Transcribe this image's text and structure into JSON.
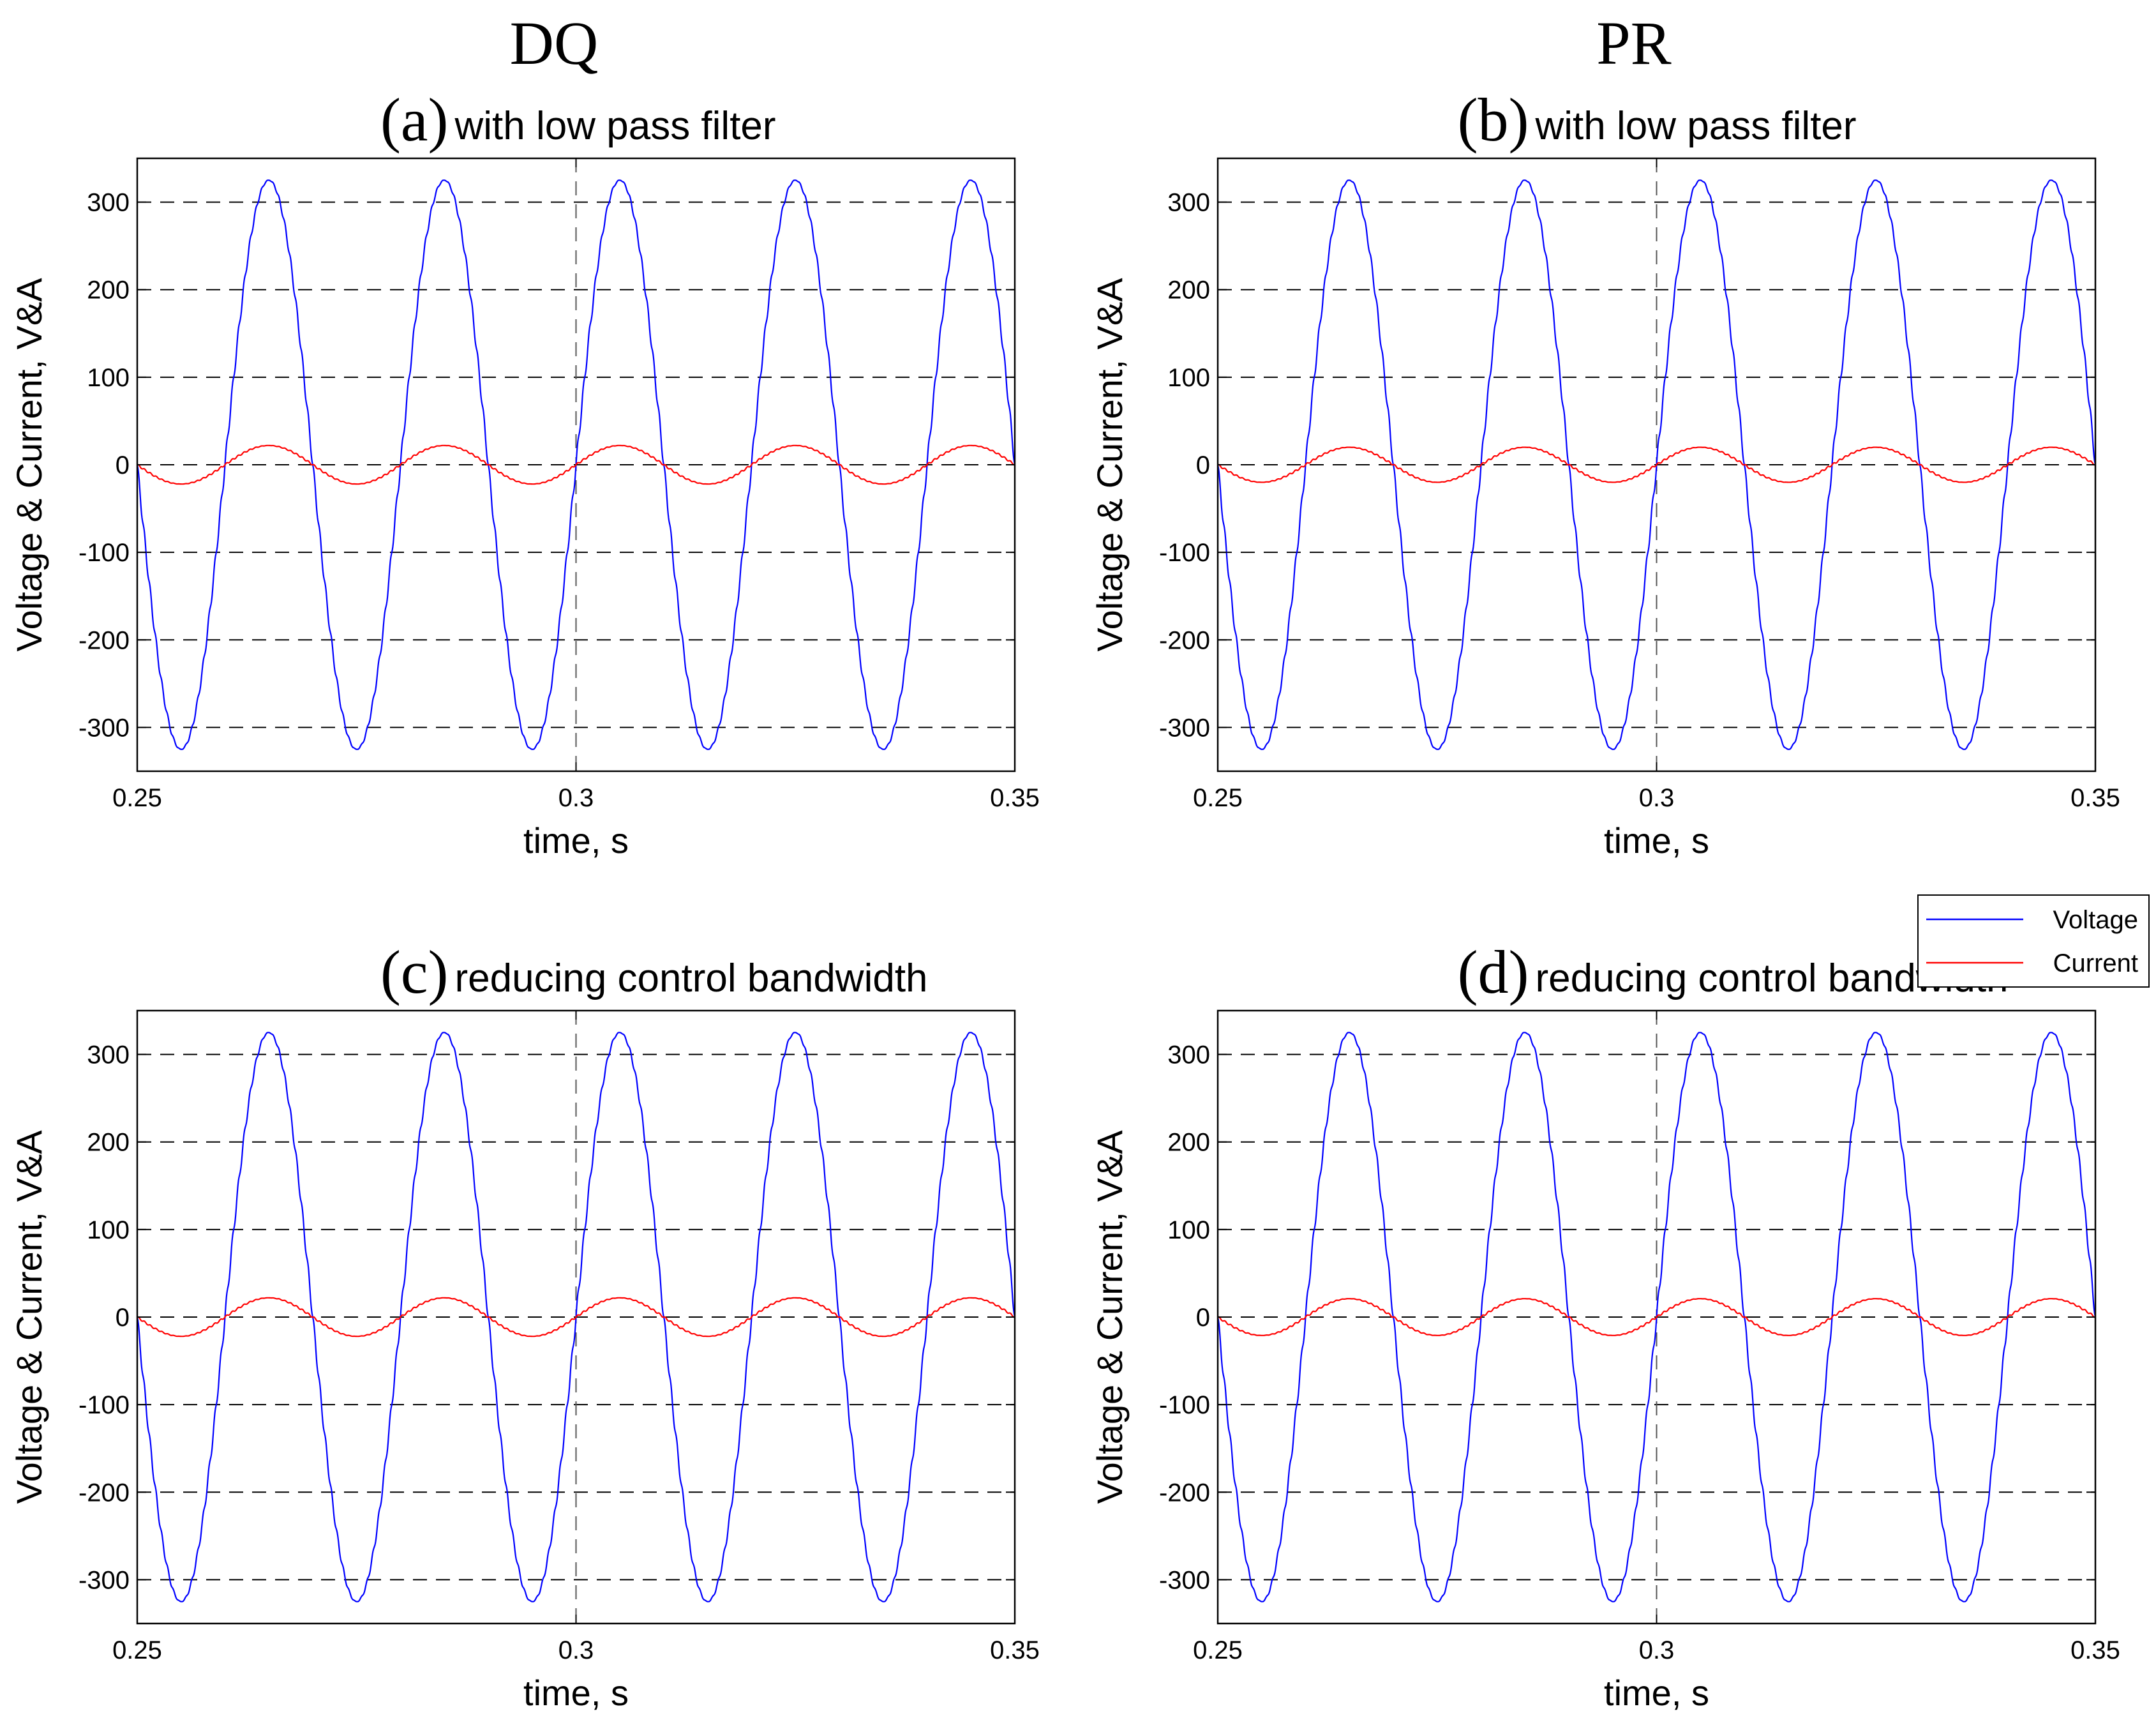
{
  "column_titles": {
    "left": "DQ",
    "right": "PR"
  },
  "legend": {
    "entries": [
      {
        "name": "Voltage",
        "color": "#0000ff"
      },
      {
        "name": "Current",
        "color": "#ff0000"
      }
    ],
    "placement": "between right panels, right edge"
  },
  "chart_data": [
    {
      "id": "a",
      "type": "line",
      "label": "(a)",
      "title": "with low pass filter",
      "xlabel": "time, s",
      "ylabel": "Voltage & Current, V&A",
      "xlim": [
        0.25,
        0.35
      ],
      "ylim": [
        -350,
        350
      ],
      "xticks": [
        0.25,
        0.3,
        0.35
      ],
      "xtick_labels": [
        "0.25",
        "0.3",
        "0.35"
      ],
      "yticks": [
        -300,
        -200,
        -100,
        0,
        100,
        200,
        300
      ],
      "ytick_labels": [
        "-300",
        "-200",
        "-100",
        "0",
        "100",
        "200",
        "300"
      ],
      "grid": "dashed",
      "event_time": 0.3,
      "series": [
        {
          "name": "Voltage",
          "color": "#0000ff",
          "waveform": "sine",
          "amplitude": 325,
          "frequency_hz": 50,
          "phase_deg": 180,
          "ripple": 6
        },
        {
          "name": "Current",
          "color": "#ff0000",
          "waveform": "sine",
          "amplitude": 22,
          "frequency_hz": 50,
          "phase_deg": 180,
          "ripple": 1
        }
      ]
    },
    {
      "id": "b",
      "type": "line",
      "label": "(b)",
      "title": "with low pass filter",
      "xlabel": "time, s",
      "ylabel": "Voltage & Current, V&A",
      "xlim": [
        0.25,
        0.35
      ],
      "ylim": [
        -350,
        350
      ],
      "xticks": [
        0.25,
        0.3,
        0.35
      ],
      "xtick_labels": [
        "0.25",
        "0.3",
        "0.35"
      ],
      "yticks": [
        -300,
        -200,
        -100,
        0,
        100,
        200,
        300
      ],
      "ytick_labels": [
        "-300",
        "-200",
        "-100",
        "0",
        "100",
        "200",
        "300"
      ],
      "grid": "dashed",
      "event_time": 0.3,
      "series": [
        {
          "name": "Voltage",
          "color": "#0000ff",
          "waveform": "sine",
          "amplitude": 325,
          "frequency_hz": 50,
          "phase_deg": 180,
          "ripple": 6
        },
        {
          "name": "Current",
          "color": "#ff0000",
          "waveform": "sine",
          "amplitude": 20,
          "frequency_hz": 50,
          "phase_deg": 180,
          "ripple": 1
        }
      ]
    },
    {
      "id": "c",
      "type": "line",
      "label": "(c)",
      "title": "reducing control bandwidth",
      "xlabel": "time, s",
      "ylabel": "Voltage & Current, V&A",
      "xlim": [
        0.25,
        0.35
      ],
      "ylim": [
        -350,
        350
      ],
      "xticks": [
        0.25,
        0.3,
        0.35
      ],
      "xtick_labels": [
        "0.25",
        "0.3",
        "0.35"
      ],
      "yticks": [
        -300,
        -200,
        -100,
        0,
        100,
        200,
        300
      ],
      "ytick_labels": [
        "-300",
        "-200",
        "-100",
        "0",
        "100",
        "200",
        "300"
      ],
      "grid": "dashed",
      "event_time": 0.3,
      "series": [
        {
          "name": "Voltage",
          "color": "#0000ff",
          "waveform": "sine",
          "amplitude": 325,
          "frequency_hz": 50,
          "phase_deg": 180,
          "ripple": 6
        },
        {
          "name": "Current",
          "color": "#ff0000",
          "waveform": "sine",
          "amplitude": 22,
          "frequency_hz": 50,
          "phase_deg": 180,
          "ripple": 1
        }
      ]
    },
    {
      "id": "d",
      "type": "line",
      "label": "(d)",
      "title": "reducing control bandwidth",
      "xlabel": "time, s",
      "ylabel": "Voltage & Current, V&A",
      "xlim": [
        0.25,
        0.35
      ],
      "ylim": [
        -350,
        350
      ],
      "xticks": [
        0.25,
        0.3,
        0.35
      ],
      "xtick_labels": [
        "0.25",
        "0.3",
        "0.35"
      ],
      "yticks": [
        -300,
        -200,
        -100,
        0,
        100,
        200,
        300
      ],
      "ytick_labels": [
        "-300",
        "-200",
        "-100",
        "0",
        "100",
        "200",
        "300"
      ],
      "grid": "dashed",
      "event_time": 0.3,
      "series": [
        {
          "name": "Voltage",
          "color": "#0000ff",
          "waveform": "sine",
          "amplitude": 325,
          "frequency_hz": 50,
          "phase_deg": 180,
          "ripple": 6
        },
        {
          "name": "Current",
          "color": "#ff0000",
          "waveform": "sine",
          "amplitude": 21,
          "frequency_hz": 50,
          "phase_deg": 180,
          "ripple": 1
        }
      ]
    }
  ]
}
